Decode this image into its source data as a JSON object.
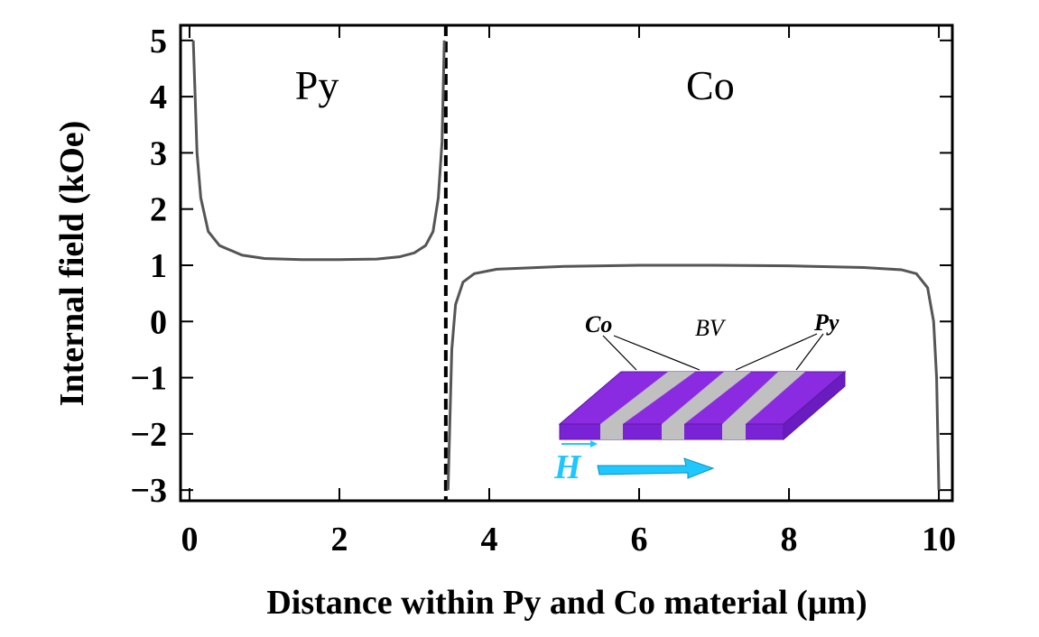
{
  "chart_data": {
    "type": "line",
    "ylabel": "Internal field (kOe)",
    "xlabel": "Distance within Py and Co material (μm)",
    "xlim": [
      -0.12,
      10.18
    ],
    "ylim": [
      -3.19,
      5.27
    ],
    "xticks": [
      0,
      2,
      4,
      6,
      8,
      10
    ],
    "yticks": [
      {
        "value": -3,
        "label": "−3"
      },
      {
        "value": -2,
        "label": "−2"
      },
      {
        "value": -1,
        "label": "−1"
      },
      0,
      1,
      2,
      3,
      4,
      5
    ],
    "vlines": [
      3.42
    ],
    "annotations": [
      {
        "text": "Py",
        "x": 1.7,
        "y": 3.95
      },
      {
        "text": "Co",
        "x": 6.95,
        "y": 3.95
      }
    ],
    "series": [
      {
        "color": "#555555",
        "x": [
          0.05,
          0.1,
          0.15,
          0.25,
          0.4,
          0.7,
          1,
          1.5,
          2,
          2.5,
          2.8,
          3.0,
          3.15,
          3.25,
          3.32,
          3.37,
          3.4
        ],
        "values": [
          5,
          3,
          2.2,
          1.6,
          1.35,
          1.18,
          1.12,
          1.1,
          1.1,
          1.11,
          1.15,
          1.22,
          1.35,
          1.6,
          2.2,
          3.2,
          5
        ]
      },
      {
        "color": "#555555",
        "x": [
          3.45,
          3.5,
          3.55,
          3.65,
          3.8,
          4.1,
          5,
          6,
          7,
          8,
          9,
          9.5,
          9.7,
          9.85,
          9.93,
          9.97,
          10
        ],
        "values": [
          -3,
          -0.5,
          0.3,
          0.7,
          0.85,
          0.93,
          0.98,
          1.0,
          1.0,
          0.99,
          0.96,
          0.92,
          0.85,
          0.6,
          0,
          -1,
          -3
        ]
      }
    ],
    "inset": {
      "labels": [
        "Co",
        "BV",
        "Py",
        "H"
      ]
    }
  }
}
